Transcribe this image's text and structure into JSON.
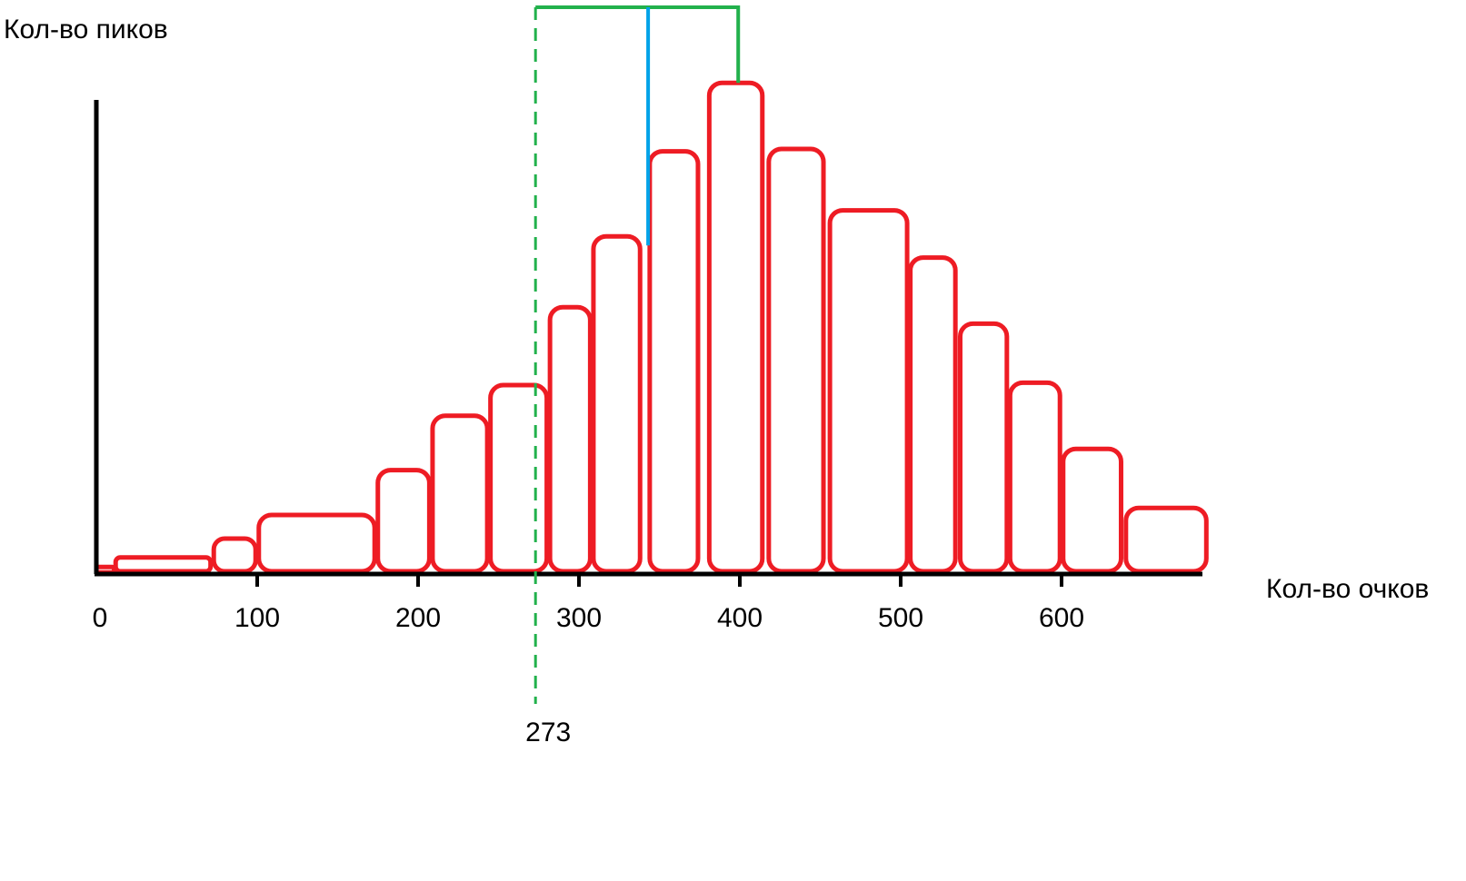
{
  "chart_data": {
    "type": "bar",
    "title": "",
    "ylabel": "Кол-во пиков",
    "xlabel": "Кол-во очков",
    "x_ticks": [
      "0",
      "100",
      "200",
      "300",
      "400",
      "500",
      "600"
    ],
    "x_tick_values": [
      0,
      100,
      200,
      300,
      400,
      500,
      600
    ],
    "xlim": [
      0,
      690
    ],
    "ylim": [
      0,
      100
    ],
    "grid": false,
    "legend": "none",
    "bars": [
      {
        "x0": 0,
        "x1": 11,
        "top": 1.5
      },
      {
        "x0": 12,
        "x1": 71,
        "top": 3.5
      },
      {
        "x0": 73,
        "x1": 99,
        "top": 7.5
      },
      {
        "x0": 101,
        "x1": 173,
        "top": 12.5
      },
      {
        "x0": 175,
        "x1": 207,
        "top": 22
      },
      {
        "x0": 209,
        "x1": 243,
        "top": 33.5
      },
      {
        "x0": 245,
        "x1": 280,
        "top": 40
      },
      {
        "x0": 282,
        "x1": 307,
        "top": 56.5
      },
      {
        "x0": 309,
        "x1": 338,
        "top": 71.5
      },
      {
        "x0": 344,
        "x1": 374,
        "top": 89.5
      },
      {
        "x0": 381,
        "x1": 414,
        "top": 104
      },
      {
        "x0": 418,
        "x1": 452,
        "top": 90
      },
      {
        "x0": 456,
        "x1": 504,
        "top": 77
      },
      {
        "x0": 506,
        "x1": 534,
        "top": 67
      },
      {
        "x0": 537,
        "x1": 566,
        "top": 53
      },
      {
        "x0": 568,
        "x1": 599,
        "top": 40.5
      },
      {
        "x0": 601,
        "x1": 637,
        "top": 26.5
      },
      {
        "x0": 640,
        "x1": 690,
        "top": 14
      }
    ],
    "annotations": {
      "threshold": {
        "x": 273,
        "label": "273",
        "color": "#22b14c",
        "style": "dashed"
      },
      "blue_marker": {
        "x": 343,
        "color": "#00a2e8"
      },
      "green_bracket": {
        "x_start": 273,
        "x_end": 399,
        "color": "#22b14c"
      }
    },
    "bar_stroke_color": "#ee1c24",
    "axis_color": "#000000"
  }
}
